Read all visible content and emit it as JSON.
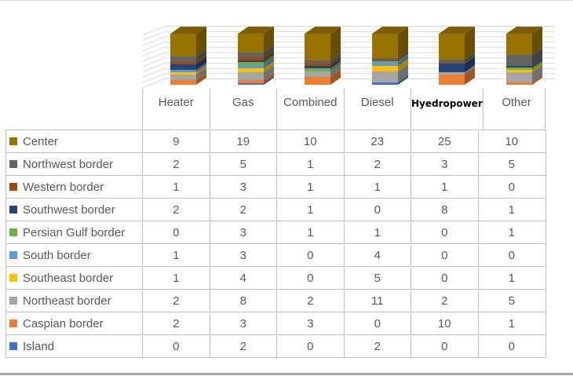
{
  "chart_data": {
    "type": "bar",
    "subtype": "3d-100-percent-stacked-column-with-data-table",
    "title": "",
    "categories": [
      "Heater",
      "Gas",
      "Combined",
      "Diesel",
      "Hyedropower",
      "Other"
    ],
    "series": [
      {
        "name": "Center",
        "color": "#997300",
        "values": [
          9,
          19,
          10,
          23,
          25,
          10
        ]
      },
      {
        "name": "Northwest border",
        "color": "#636363",
        "values": [
          2,
          5,
          1,
          2,
          3,
          5
        ]
      },
      {
        "name": "Western border",
        "color": "#9E480E",
        "values": [
          1,
          3,
          1,
          1,
          1,
          0
        ]
      },
      {
        "name": "Southwest border",
        "color": "#264478",
        "values": [
          2,
          2,
          1,
          0,
          8,
          1
        ]
      },
      {
        "name": "Persian Gulf border",
        "color": "#70AD47",
        "values": [
          0,
          3,
          1,
          1,
          0,
          1
        ]
      },
      {
        "name": "South border",
        "color": "#5B9BD5",
        "values": [
          1,
          3,
          0,
          4,
          0,
          0
        ]
      },
      {
        "name": "Southeast border",
        "color": "#FFC000",
        "values": [
          1,
          4,
          0,
          5,
          0,
          1
        ]
      },
      {
        "name": "Northeast border",
        "color": "#A5A5A5",
        "values": [
          2,
          8,
          2,
          11,
          2,
          5
        ]
      },
      {
        "name": "Caspian border",
        "color": "#ED7D31",
        "values": [
          2,
          3,
          3,
          0,
          10,
          1
        ]
      },
      {
        "name": "Island",
        "color": "#4472C4",
        "values": [
          0,
          2,
          0,
          2,
          0,
          0
        ]
      }
    ],
    "stacking_bottom_to_top": [
      "Island",
      "Caspian border",
      "Northeast border",
      "Southeast border",
      "South border",
      "Persian Gulf border",
      "Southwest border",
      "Western border",
      "Northwest border",
      "Center"
    ],
    "special_category_label": {
      "index": 4,
      "text": "Hyedropower",
      "style": "black bold overlay text box"
    },
    "axis": {
      "value_axis_labels_visible": false,
      "gridline_count": 11,
      "grid_on": true
    },
    "legend_position": "data-table-left-keys"
  },
  "colors": {
    "gridline": "#D9D9D9",
    "table_line": "#BFBFBF",
    "table_text": "#595959",
    "special_label_text": "#000000",
    "frame_top": "#D9D9D9",
    "frame_bottom": "#A6A6A6"
  }
}
